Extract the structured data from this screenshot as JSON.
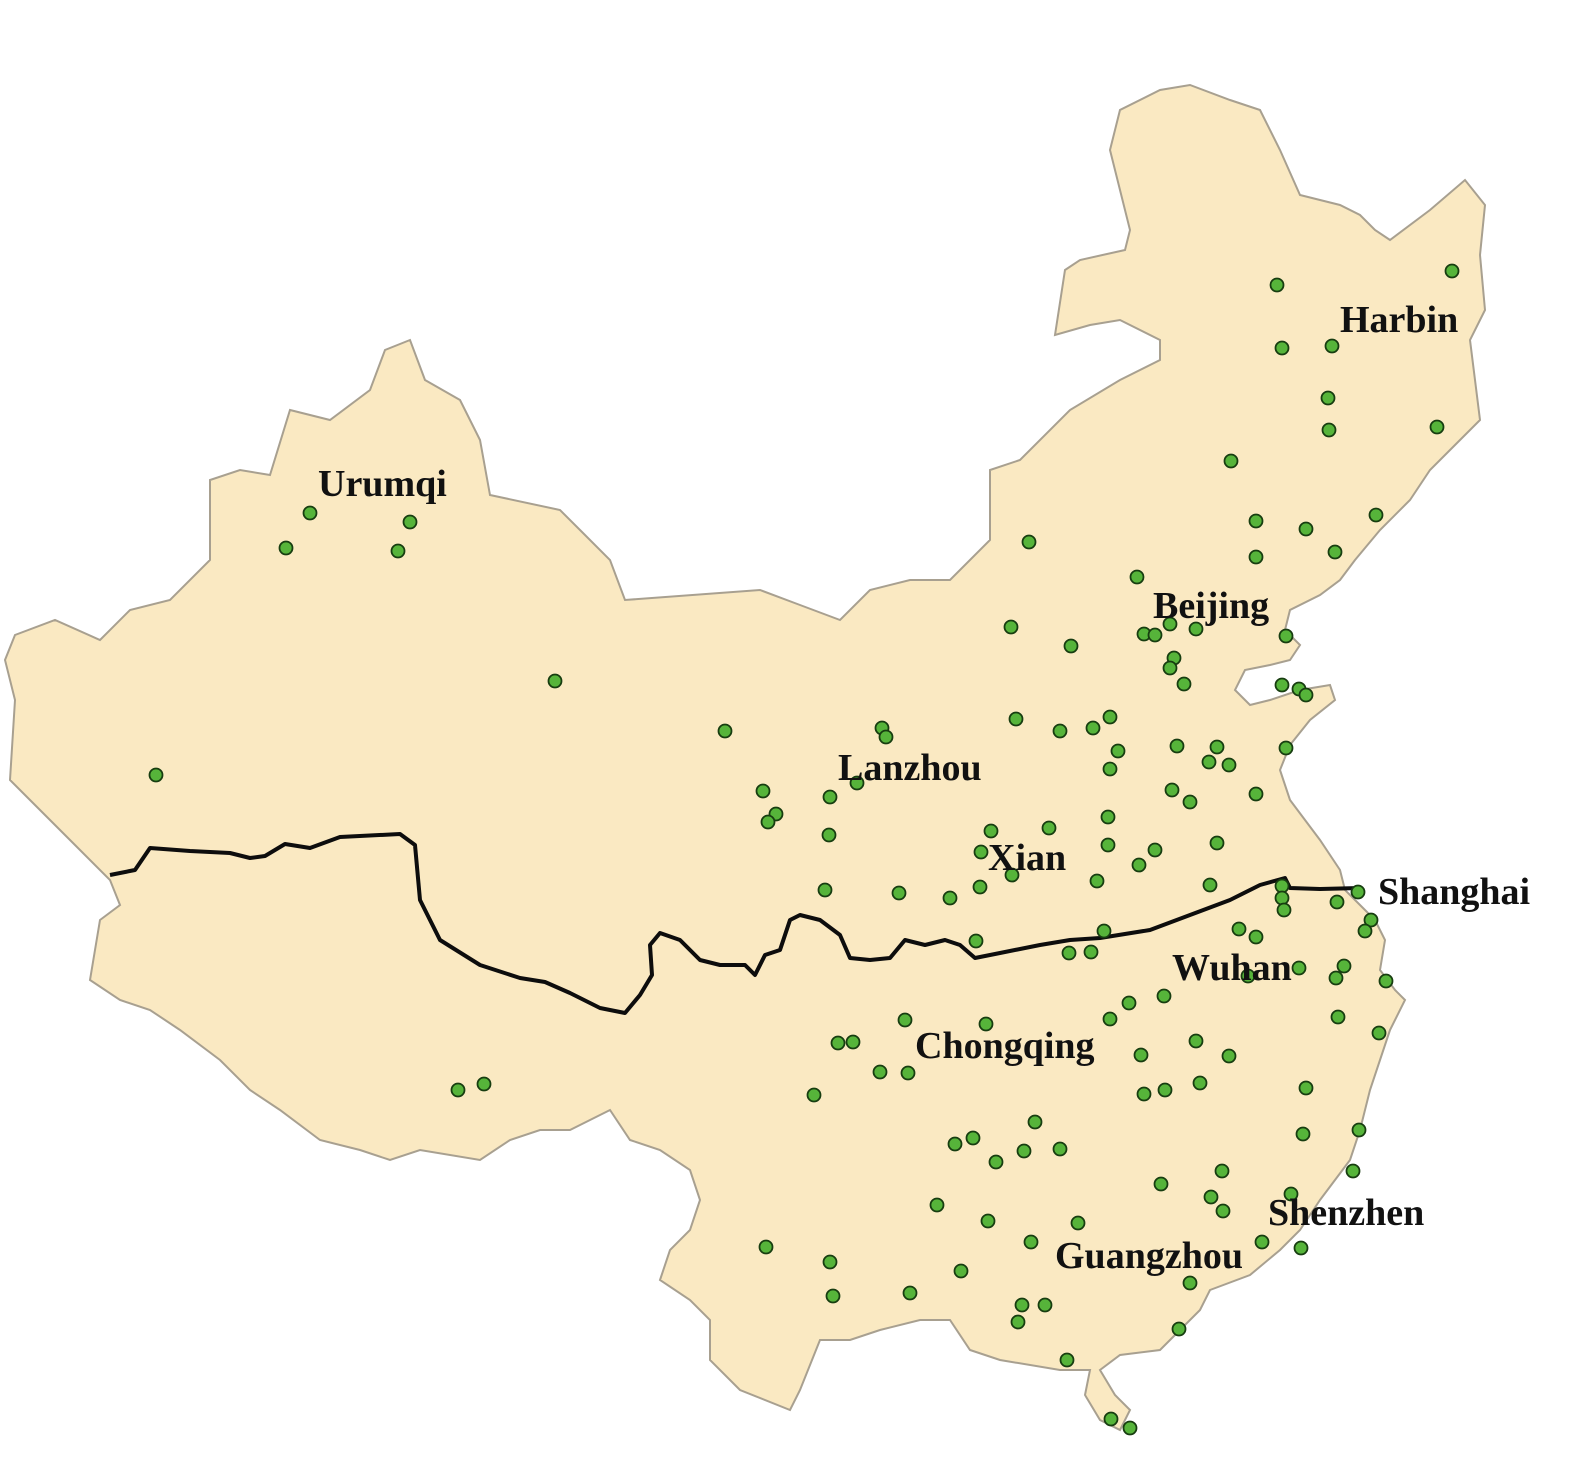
{
  "colors": {
    "land": "#fae9c2",
    "land_edge": "#a8a090",
    "divide_line": "#0d0d0d",
    "station_fill": "#56b43a",
    "station_edge": "#173d10",
    "label": "#111111"
  },
  "cities": [
    {
      "id": "urumqi",
      "name": "Urumqi"
    },
    {
      "id": "harbin",
      "name": "Harbin"
    },
    {
      "id": "beijing",
      "name": "Beijing"
    },
    {
      "id": "lanzhou",
      "name": "Lanzhou"
    },
    {
      "id": "xian",
      "name": "Xian"
    },
    {
      "id": "shanghai",
      "name": "Shanghai"
    },
    {
      "id": "wuhan",
      "name": "Wuhan"
    },
    {
      "id": "chongqing",
      "name": "Chongqing"
    },
    {
      "id": "shenzhen",
      "name": "Shenzhen"
    },
    {
      "id": "guangzhou",
      "name": "Guangzhou"
    }
  ],
  "stations": {
    "symbol": "circle",
    "count": 133
  }
}
